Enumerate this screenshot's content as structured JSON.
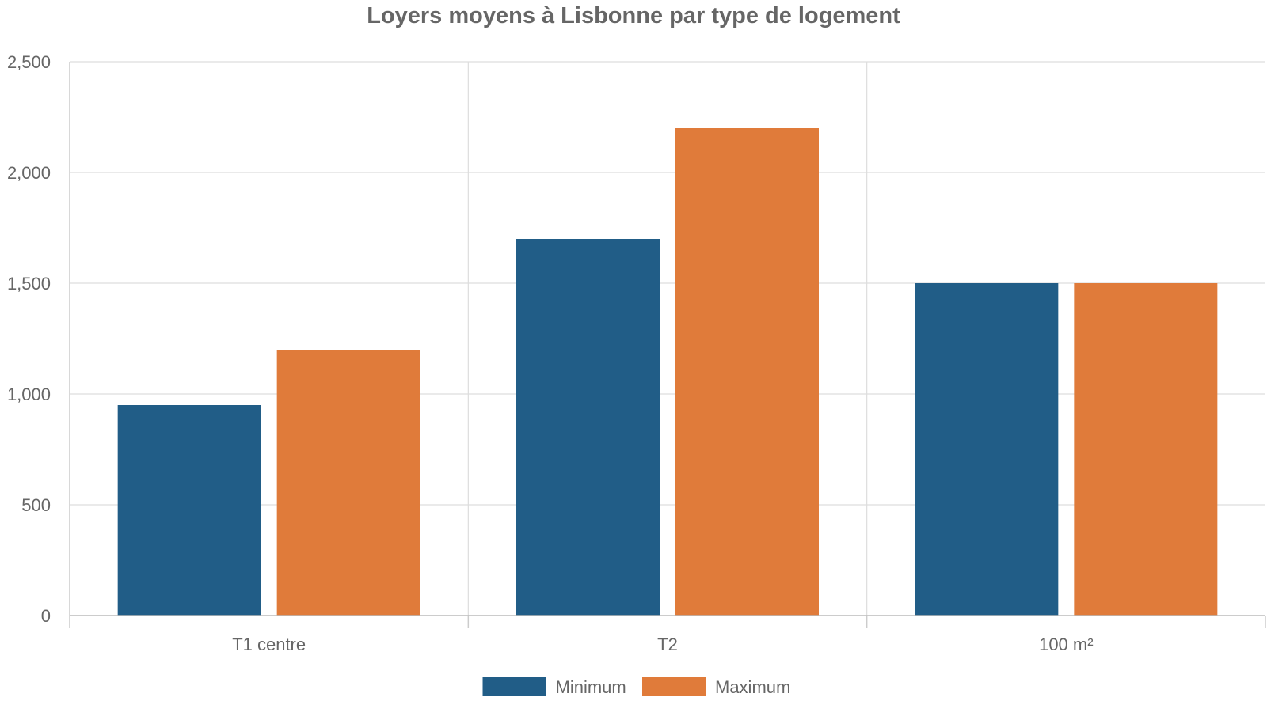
{
  "chart_data": {
    "type": "bar",
    "title": "Loyers moyens à Lisbonne par type de logement",
    "xlabel": "",
    "ylabel": "",
    "categories": [
      "T1 centre",
      "T2",
      "100 m²"
    ],
    "series": [
      {
        "name": "Minimum",
        "values": [
          950,
          1700,
          1500
        ],
        "color": "#215d87"
      },
      {
        "name": "Maximum",
        "values": [
          1200,
          2200,
          1500
        ],
        "color": "#e07b3a"
      }
    ],
    "ylim": [
      0,
      2500
    ],
    "yticks": [
      0,
      500,
      1000,
      1500,
      2000,
      2500
    ],
    "ytick_labels": [
      "0",
      "500",
      "1,000",
      "1,500",
      "2,000",
      "2,500"
    ],
    "grid": true,
    "legend_position": "bottom-center"
  }
}
